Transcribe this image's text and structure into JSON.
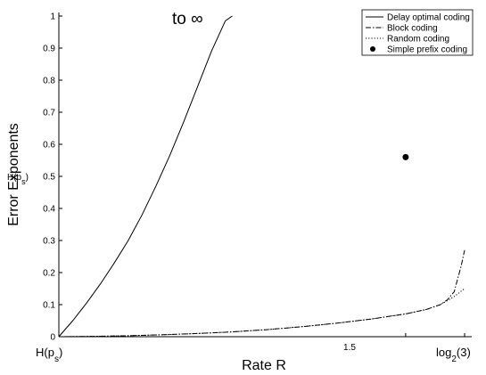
{
  "chart_data": {
    "type": "line",
    "xlabel": "Rate R",
    "ylabel": "Error Exponents",
    "ylim": [
      0,
      1
    ],
    "xlim": [
      1.0,
      1.585
    ],
    "y_ticks": [
      "0",
      "0.1",
      "0.2",
      "0.3",
      "0.4",
      "0.5",
      "0.6",
      "0.7",
      "0.8",
      "0.9",
      "1"
    ],
    "x_tick_labels": {
      "start_base": "H(p",
      "start_sub": "s",
      "start_end": ")",
      "middle": "1.5",
      "end_base": "log",
      "end_sub": "2",
      "end_end": "(3)"
    },
    "y_special_label": {
      "base": "H(p",
      "sub": "s",
      "end": ")",
      "value": 0.5
    },
    "annotation": "to ∞",
    "legend_position": "top-right",
    "series": [
      {
        "name": "Delay optimal coding",
        "style": "solid",
        "x": [
          1.0,
          1.02,
          1.04,
          1.06,
          1.08,
          1.1,
          1.12,
          1.14,
          1.16,
          1.18,
          1.2,
          1.22,
          1.24,
          1.25
        ],
        "y": [
          0.0,
          0.05,
          0.105,
          0.165,
          0.23,
          0.3,
          0.38,
          0.47,
          0.565,
          0.67,
          0.78,
          0.89,
          0.985,
          1.0
        ]
      },
      {
        "name": "Block coding",
        "style": "dashdot",
        "x": [
          1.0,
          1.05,
          1.1,
          1.15,
          1.2,
          1.25,
          1.3,
          1.35,
          1.4,
          1.45,
          1.5,
          1.53,
          1.55,
          1.56,
          1.57,
          1.575,
          1.58,
          1.585
        ],
        "y": [
          0.0,
          0.001,
          0.003,
          0.006,
          0.01,
          0.015,
          0.022,
          0.031,
          0.042,
          0.055,
          0.071,
          0.085,
          0.1,
          0.115,
          0.14,
          0.18,
          0.22,
          0.27
        ]
      },
      {
        "name": "Random coding",
        "style": "dotted",
        "x": [
          1.0,
          1.05,
          1.1,
          1.15,
          1.2,
          1.25,
          1.3,
          1.35,
          1.4,
          1.45,
          1.5,
          1.53,
          1.55,
          1.57,
          1.585
        ],
        "y": [
          0.0,
          0.001,
          0.003,
          0.006,
          0.01,
          0.015,
          0.022,
          0.031,
          0.042,
          0.055,
          0.071,
          0.085,
          0.1,
          0.125,
          0.15
        ]
      },
      {
        "name": "Simple prefix coding",
        "style": "marker",
        "x": [
          1.5
        ],
        "y": [
          0.56
        ]
      }
    ]
  }
}
